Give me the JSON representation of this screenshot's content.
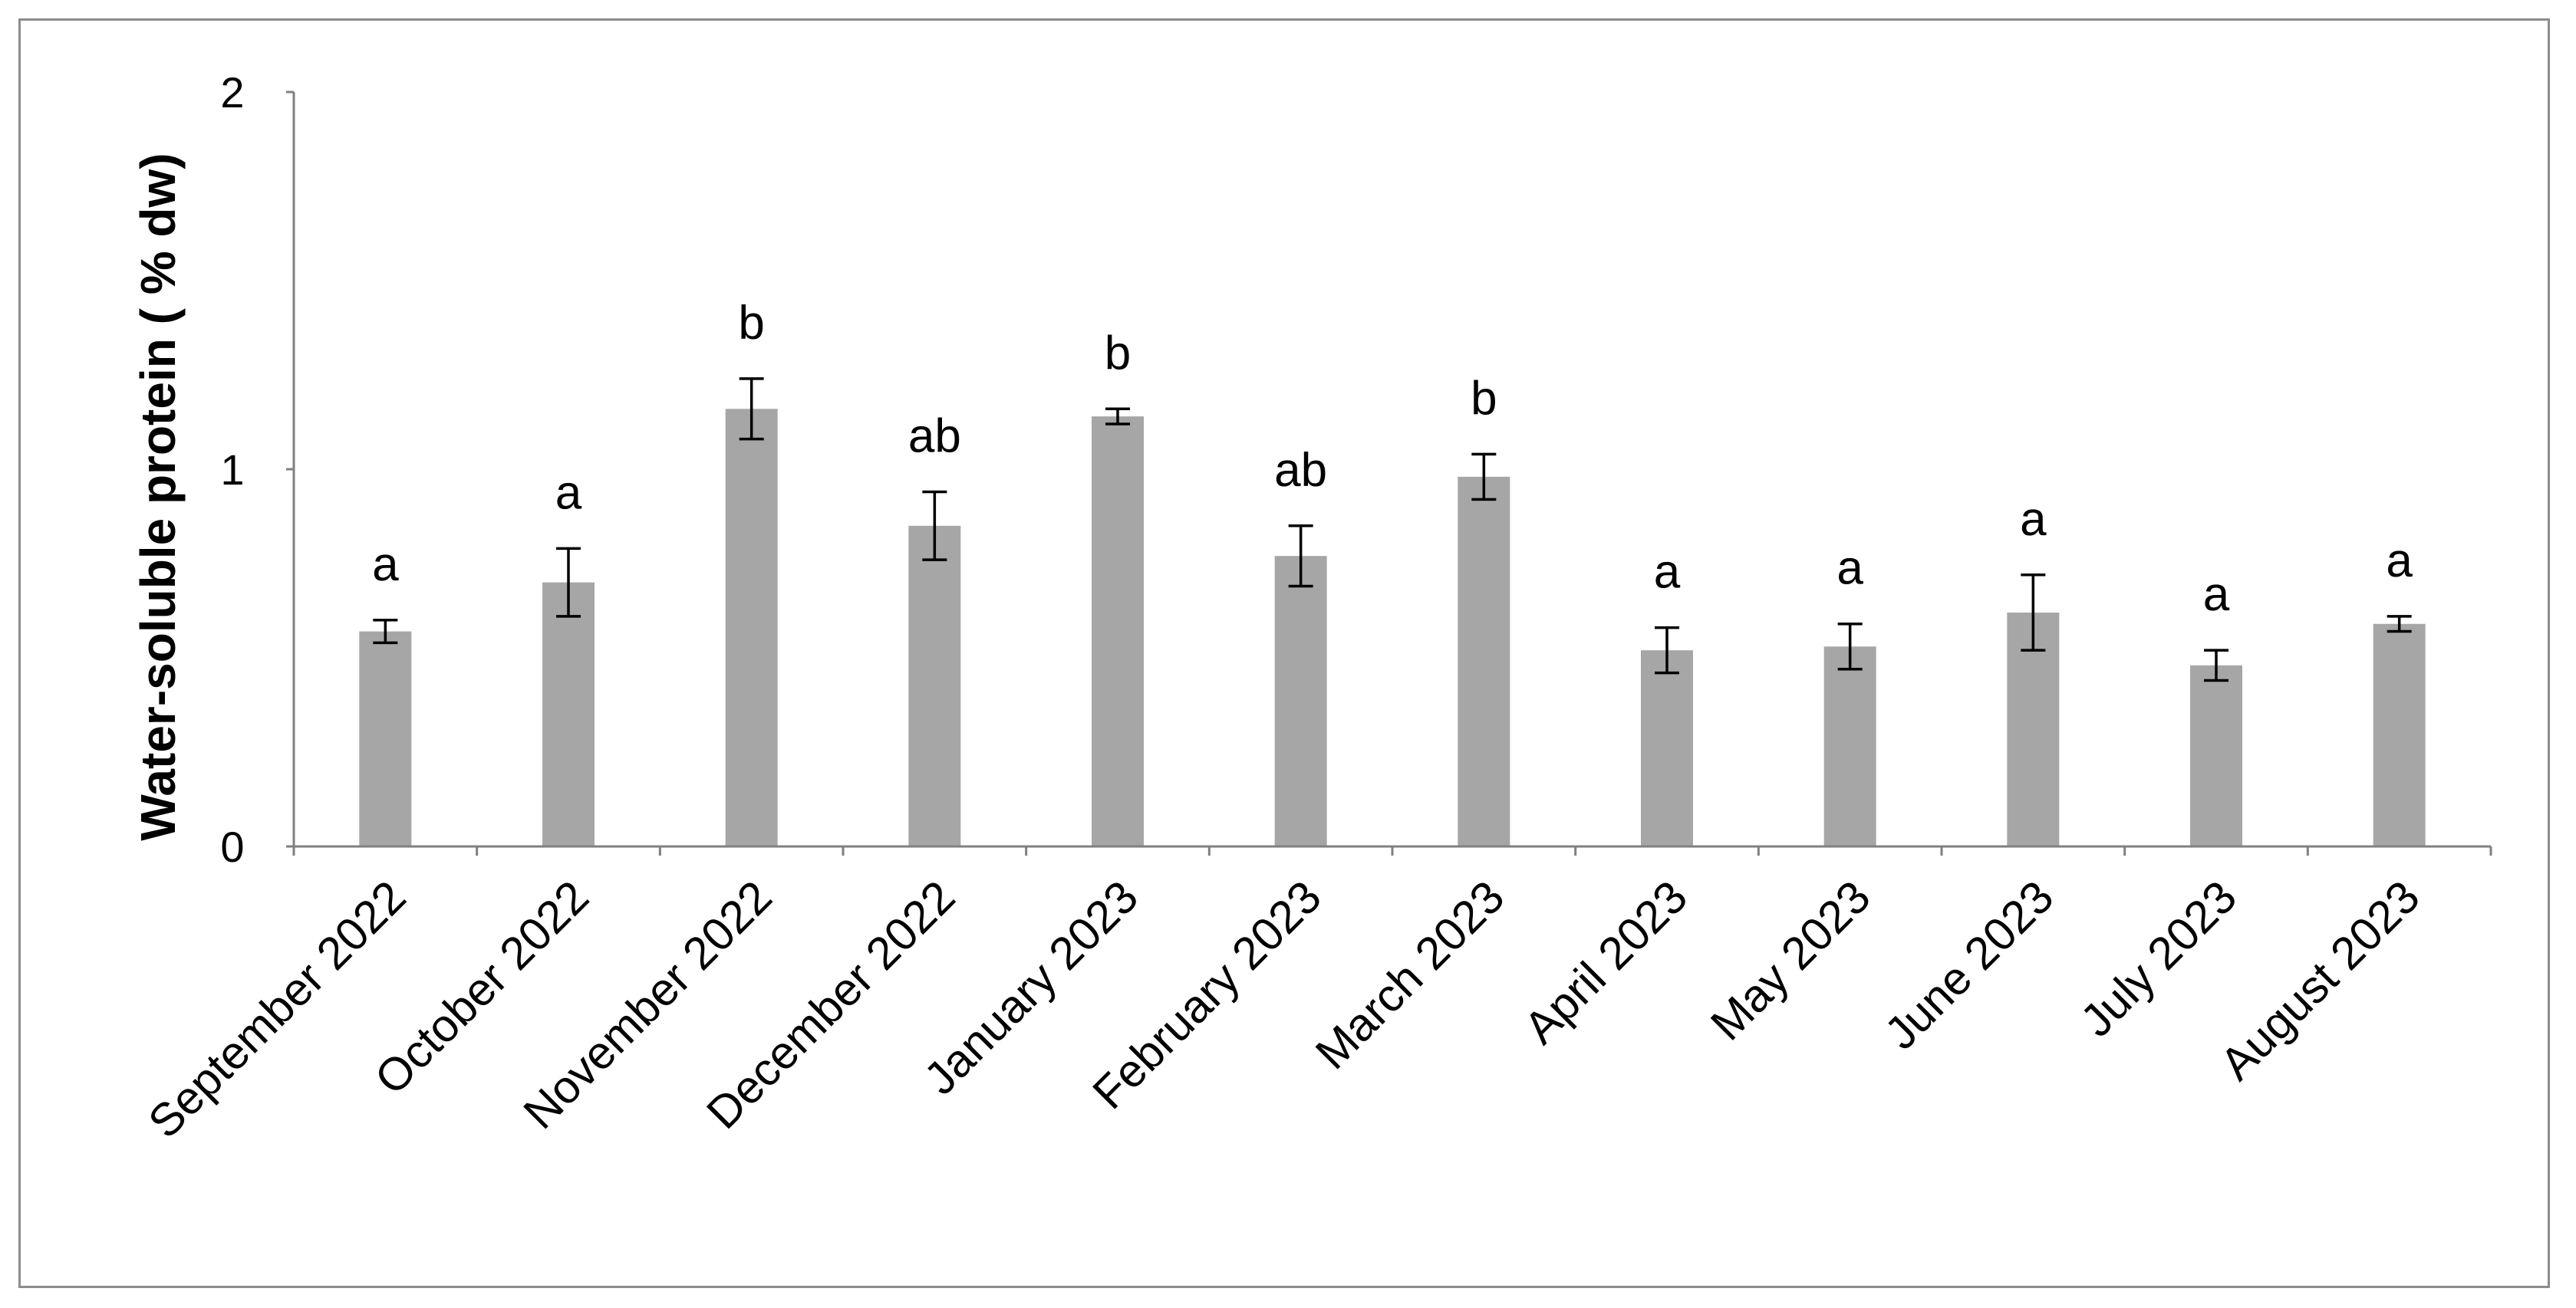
{
  "chart_data": {
    "type": "bar",
    "title": "",
    "xlabel": "",
    "ylabel": "Water-soluble protein  ( % dw)",
    "ylim": [
      0,
      2
    ],
    "yticks": [
      "0",
      "1",
      "2"
    ],
    "grid": false,
    "bar_color": "#a6a6a6",
    "axis_color": "#808080",
    "categories": [
      "September 2022",
      "October 2022",
      "November 2022",
      "December 2022",
      "January 2023",
      "February 2023",
      "March 2023",
      "April 2023",
      "May 2023",
      "June 2023",
      "July 2023",
      "August 2023"
    ],
    "values": [
      0.57,
      0.7,
      1.16,
      0.85,
      1.14,
      0.77,
      0.98,
      0.52,
      0.53,
      0.62,
      0.48,
      0.59
    ],
    "error": [
      0.03,
      0.09,
      0.08,
      0.09,
      0.02,
      0.08,
      0.06,
      0.06,
      0.06,
      0.1,
      0.04,
      0.02
    ],
    "significance_labels": [
      "a",
      "a",
      "b",
      "ab",
      "b",
      "ab",
      "b",
      "a",
      "a",
      "a",
      "a",
      "a"
    ]
  }
}
